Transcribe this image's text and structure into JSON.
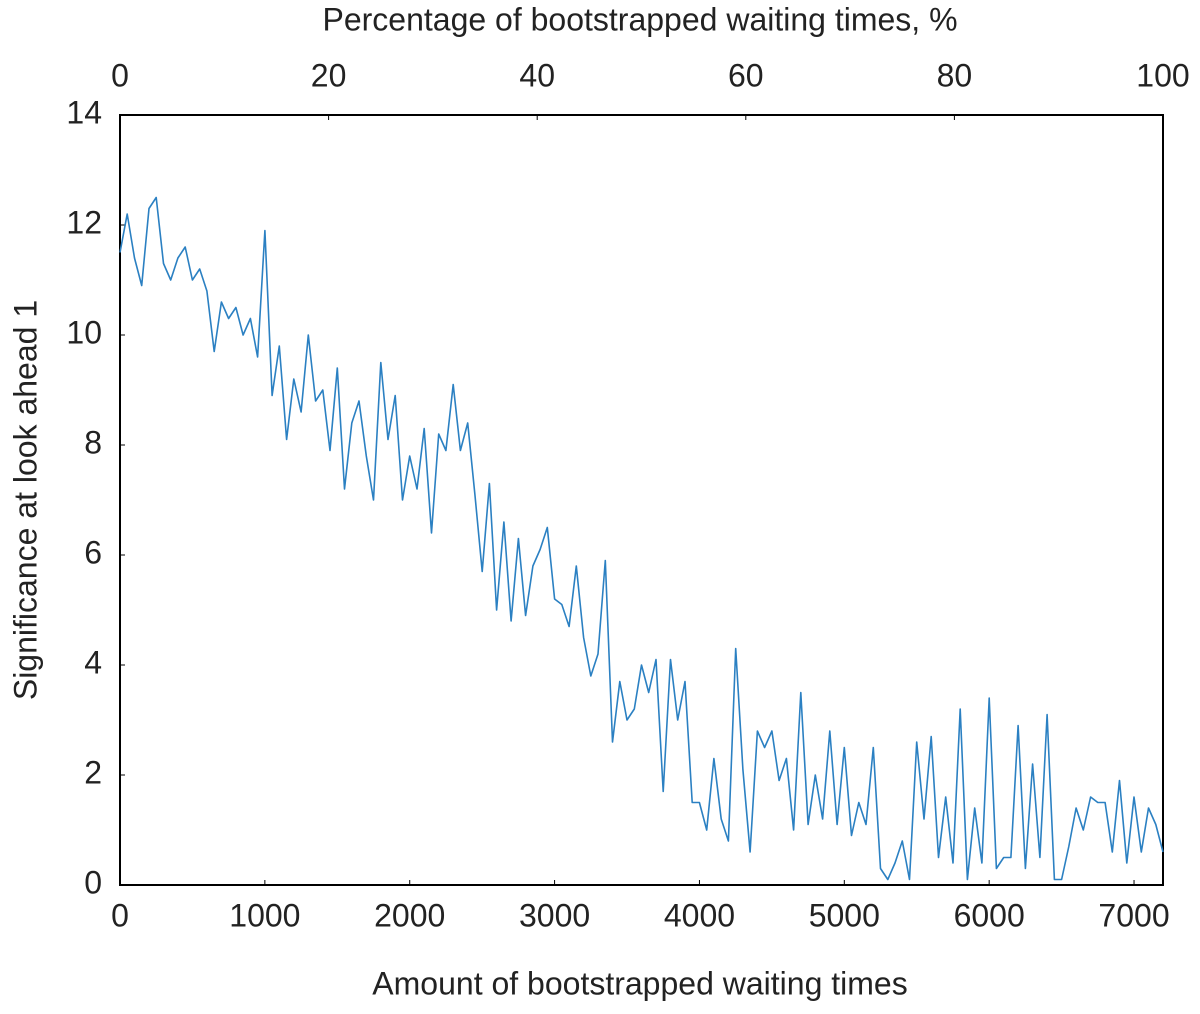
{
  "chart_data": {
    "type": "line",
    "xlabel": "Amount of bootstrapped waiting times",
    "ylabel": "Significance at look ahead 1",
    "x2label": "Percentage of bootstrapped waiting times, %",
    "xlim": [
      0,
      7200
    ],
    "xticks": [
      0,
      1000,
      2000,
      3000,
      4000,
      5000,
      6000,
      7000
    ],
    "x2lim": [
      0,
      100
    ],
    "x2ticks": [
      0,
      20,
      40,
      60,
      80,
      100
    ],
    "ylim": [
      0,
      14
    ],
    "yticks": [
      0,
      2,
      4,
      6,
      8,
      10,
      12,
      14
    ],
    "x": [
      0,
      50,
      100,
      150,
      200,
      250,
      300,
      350,
      400,
      450,
      500,
      550,
      600,
      650,
      700,
      750,
      800,
      850,
      900,
      950,
      1000,
      1050,
      1100,
      1150,
      1200,
      1250,
      1300,
      1350,
      1400,
      1450,
      1500,
      1550,
      1600,
      1650,
      1700,
      1750,
      1800,
      1850,
      1900,
      1950,
      2000,
      2050,
      2100,
      2150,
      2200,
      2250,
      2300,
      2350,
      2400,
      2450,
      2500,
      2550,
      2600,
      2650,
      2700,
      2750,
      2800,
      2850,
      2900,
      2950,
      3000,
      3050,
      3100,
      3150,
      3200,
      3250,
      3300,
      3350,
      3400,
      3450,
      3500,
      3550,
      3600,
      3650,
      3700,
      3750,
      3800,
      3850,
      3900,
      3950,
      4000,
      4050,
      4100,
      4150,
      4200,
      4250,
      4300,
      4350,
      4400,
      4450,
      4500,
      4550,
      4600,
      4650,
      4700,
      4750,
      4800,
      4850,
      4900,
      4950,
      5000,
      5050,
      5100,
      5150,
      5200,
      5250,
      5300,
      5350,
      5400,
      5450,
      5500,
      5550,
      5600,
      5650,
      5700,
      5750,
      5800,
      5850,
      5900,
      5950,
      6000,
      6050,
      6100,
      6150,
      6200,
      6250,
      6300,
      6350,
      6400,
      6450,
      6500,
      6550,
      6600,
      6650,
      6700,
      6750,
      6800,
      6850,
      6900,
      6950,
      7000,
      7050,
      7100,
      7150,
      7200
    ],
    "series": [
      {
        "color": "#2b80c2",
        "values": [
          11.5,
          12.2,
          11.4,
          10.9,
          12.3,
          12.5,
          11.3,
          11.0,
          11.4,
          11.6,
          11.0,
          11.2,
          10.8,
          9.7,
          10.6,
          10.3,
          10.5,
          10.0,
          10.3,
          9.6,
          11.9,
          8.9,
          9.8,
          8.1,
          9.2,
          8.6,
          10.0,
          8.8,
          9.0,
          7.9,
          9.4,
          7.2,
          8.4,
          8.8,
          7.8,
          7.0,
          9.5,
          8.1,
          8.9,
          7.0,
          7.8,
          7.2,
          8.3,
          6.4,
          8.2,
          7.9,
          9.1,
          7.9,
          8.4,
          7.1,
          5.7,
          7.3,
          5.0,
          6.6,
          4.8,
          6.3,
          4.9,
          5.8,
          6.1,
          6.5,
          5.2,
          5.1,
          4.7,
          5.8,
          4.5,
          3.8,
          4.2,
          5.9,
          2.6,
          3.7,
          3.0,
          3.2,
          4.0,
          3.5,
          4.1,
          1.7,
          4.1,
          3.0,
          3.7,
          1.5,
          1.5,
          1.0,
          2.3,
          1.2,
          0.8,
          4.3,
          2.1,
          0.6,
          2.8,
          2.5,
          2.8,
          1.9,
          2.3,
          1.0,
          3.5,
          1.1,
          2.0,
          1.2,
          2.8,
          1.1,
          2.5,
          0.9,
          1.5,
          1.1,
          2.5,
          0.3,
          0.1,
          0.4,
          0.8,
          0.1,
          2.6,
          1.2,
          2.7,
          0.5,
          1.6,
          0.4,
          3.2,
          0.1,
          1.4,
          0.4,
          3.4,
          0.3,
          0.5,
          0.5,
          2.9,
          0.3,
          2.2,
          0.5,
          3.1,
          0.1,
          0.1,
          0.7,
          1.4,
          1.0,
          1.6,
          1.5,
          1.5,
          0.6,
          1.9,
          0.4,
          1.6,
          0.6,
          1.4,
          1.1,
          0.6
        ]
      }
    ]
  }
}
